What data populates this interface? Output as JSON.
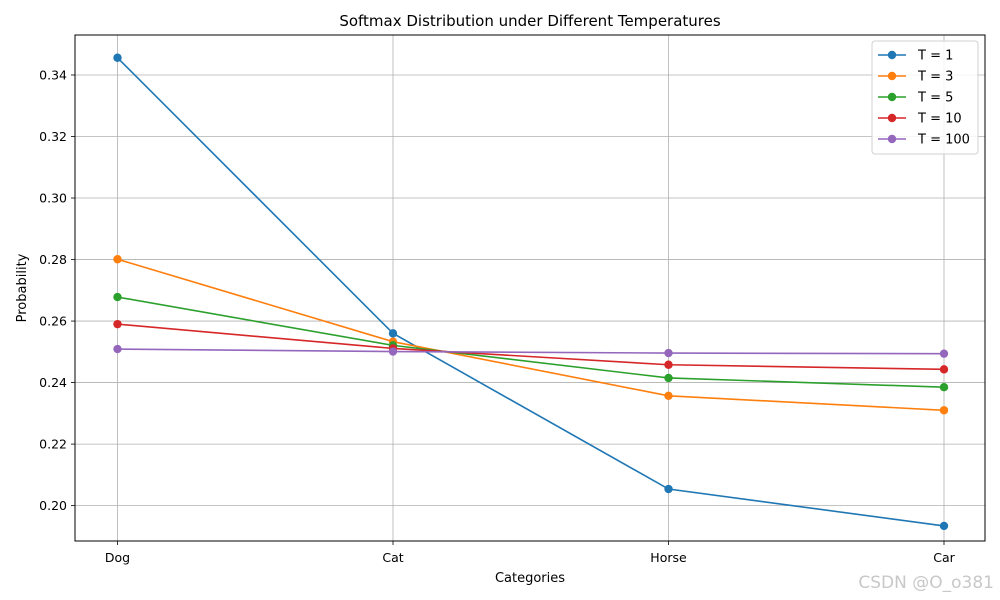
{
  "chart_data": {
    "type": "line",
    "title": "Softmax Distribution under Different Temperatures",
    "xlabel": "Categories",
    "ylabel": "Probability",
    "categories": [
      "Dog",
      "Cat",
      "Horse",
      "Car"
    ],
    "ylim": [
      0.1885,
      0.353
    ],
    "yticks": [
      0.2,
      0.22,
      0.24,
      0.26,
      0.28,
      0.3,
      0.32,
      0.34
    ],
    "ytick_labels": [
      "0.20",
      "0.22",
      "0.24",
      "0.26",
      "0.28",
      "0.30",
      "0.32",
      "0.34"
    ],
    "grid": true,
    "legend_position": "top-right",
    "series": [
      {
        "name": "T = 1",
        "color": "#1f77b4",
        "values": [
          0.3456,
          0.256,
          0.2054,
          0.1934
        ]
      },
      {
        "name": "T = 3",
        "color": "#ff7f0e",
        "values": [
          0.2801,
          0.2533,
          0.2357,
          0.231
        ]
      },
      {
        "name": "T = 5",
        "color": "#2ca02c",
        "values": [
          0.2678,
          0.2521,
          0.2415,
          0.2385
        ]
      },
      {
        "name": "T = 10",
        "color": "#d62728",
        "values": [
          0.259,
          0.2511,
          0.2458,
          0.2443
        ]
      },
      {
        "name": "T = 100",
        "color": "#9467bd",
        "values": [
          0.2509,
          0.2501,
          0.2496,
          0.2494
        ]
      }
    ]
  },
  "watermark": "CSDN @O_o381"
}
